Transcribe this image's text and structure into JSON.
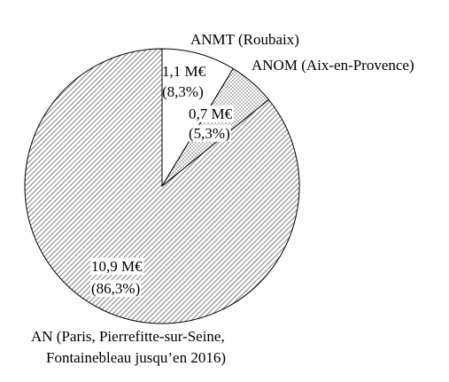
{
  "chart_data": {
    "type": "pie",
    "labels": [
      [
        "ANMT (Roubaix)"
      ],
      [
        "ANOM (Aix-en-Provence)"
      ],
      [
        "AN (Paris, Pierrefitte-sur-Seine,",
        "Fontainebleau jusqu’en 2016)"
      ]
    ],
    "values": [
      1.1,
      0.7,
      10.9
    ],
    "value_labels": [
      "1,1 M€",
      "0,7 M€",
      "10,9 M€"
    ],
    "percents": [
      8.3,
      5.3,
      86.3
    ],
    "percent_labels": [
      "(8,3%)",
      "(5,3%)",
      "(86,3%)"
    ],
    "patterns": [
      "none",
      "dots",
      "hatch"
    ]
  }
}
